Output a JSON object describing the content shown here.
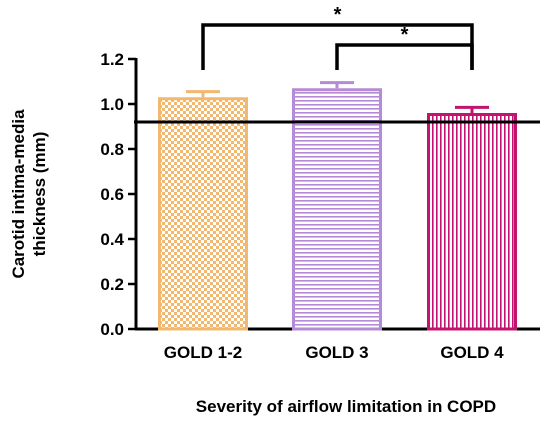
{
  "chart_data": {
    "type": "bar",
    "title": "",
    "xlabel": "Severity of airflow limitation in COPD",
    "ylabel_lines": [
      "Carotid intima-media",
      "thickness (mm)"
    ],
    "ylim": [
      0,
      1.2
    ],
    "yticks": [
      0.0,
      0.2,
      0.4,
      0.6,
      0.8,
      1.0,
      1.2
    ],
    "ytick_labels": [
      "0.0",
      "0.2",
      "0.4",
      "0.6",
      "0.8",
      "1.0",
      "1.2"
    ],
    "categories": [
      "GOLD 1-2",
      "GOLD 3",
      "GOLD 4"
    ],
    "values": [
      1.03,
      1.07,
      0.96
    ],
    "errors": [
      0.025,
      0.025,
      0.025
    ],
    "bar_patterns": [
      "checker",
      "horizontal-lines",
      "vertical-lines"
    ],
    "bar_colors": [
      "#f2b870",
      "#b58ad6",
      "#c0146e"
    ],
    "reference_line": 0.92,
    "significance": [
      {
        "from": 0,
        "to": 2,
        "label": "*"
      },
      {
        "from": 1,
        "to": 2,
        "label": "*"
      }
    ],
    "grid": false,
    "legend": "none"
  }
}
